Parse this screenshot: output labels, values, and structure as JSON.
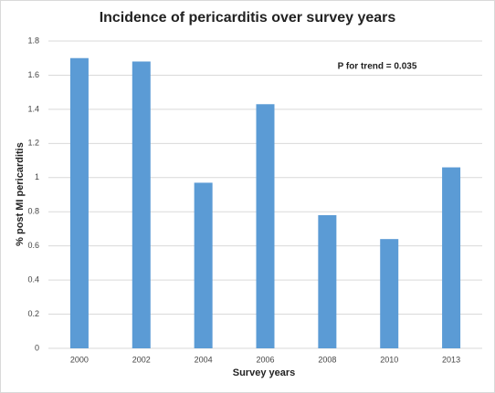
{
  "chart_data": {
    "type": "bar",
    "title": "Incidence of pericarditis over survey years",
    "x_label": "Survey years",
    "y_label": "% post MI pericarditis",
    "annotation": "P for trend = 0.035",
    "categories": [
      "2000",
      "2002",
      "2004",
      "2006",
      "2008",
      "2010",
      "2013"
    ],
    "values": [
      1.7,
      1.68,
      0.97,
      1.43,
      0.78,
      0.64,
      1.06
    ],
    "color": "#5b9bd5",
    "ylim": [
      0,
      1.8
    ],
    "yticks": [
      0,
      0.2,
      0.4,
      0.6,
      0.8,
      1,
      1.2,
      1.4,
      1.6,
      1.8
    ],
    "grid": true
  }
}
